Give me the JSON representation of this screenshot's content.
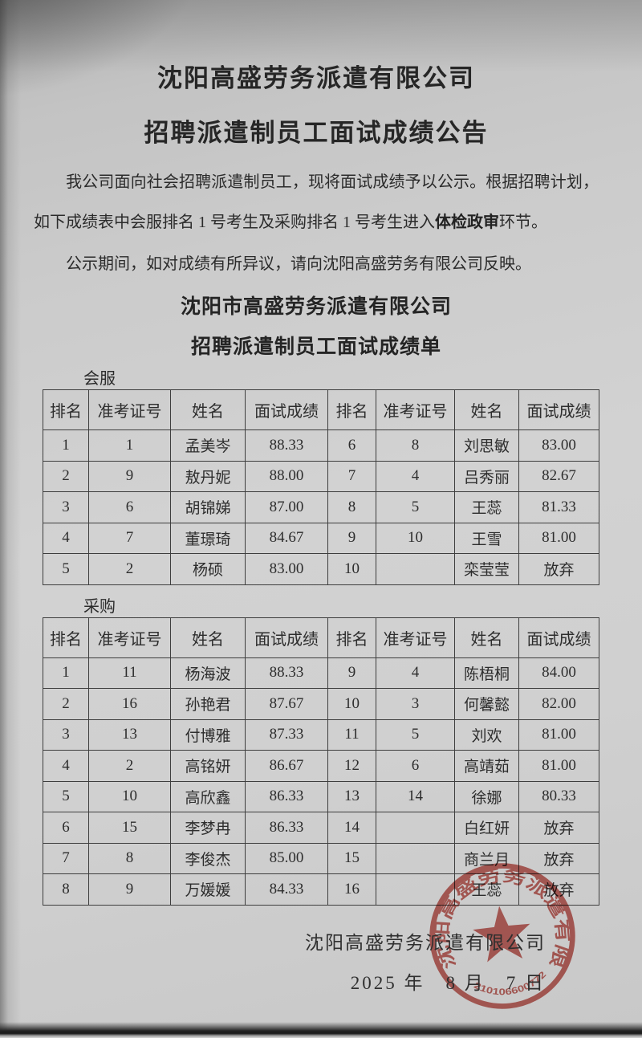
{
  "document": {
    "title_line1": "沈阳高盛劳务派遣有限公司",
    "title_line2": "招聘派遣制员工面试成绩公告",
    "paragraph1_before": "我公司面向社会招聘派遣制员工，现将面试成绩予以公示。根据招聘计划，如下成绩表中会服排名 1 号考生及采购排名 1 号考生进入",
    "paragraph1_bold": "体检政审",
    "paragraph1_after": "环节。",
    "paragraph2": "公示期间，如对成绩有所异议，请向沈阳高盛劳务有限公司反映。",
    "list_title_line1": "沈阳市高盛劳务派遣有限公司",
    "list_title_line2": "招聘派遣制员工面试成绩单"
  },
  "tables": [
    {
      "label": "会服",
      "headers": [
        "排名",
        "准考证号",
        "姓名",
        "面试成绩",
        "排名",
        "准考证号",
        "姓名",
        "面试成绩"
      ],
      "rows": [
        [
          "1",
          "1",
          "孟美岑",
          "88.33",
          "6",
          "8",
          "刘思敏",
          "83.00"
        ],
        [
          "2",
          "9",
          "敖丹妮",
          "88.00",
          "7",
          "4",
          "吕秀丽",
          "82.67"
        ],
        [
          "3",
          "6",
          "胡锦娣",
          "87.00",
          "8",
          "5",
          "王蕊",
          "81.33"
        ],
        [
          "4",
          "7",
          "董璟琦",
          "84.67",
          "9",
          "10",
          "王雪",
          "81.00"
        ],
        [
          "5",
          "2",
          "杨硕",
          "83.00",
          "10",
          "",
          "栾莹莹",
          "放弃"
        ]
      ]
    },
    {
      "label": "采购",
      "headers": [
        "排名",
        "准考证号",
        "姓名",
        "面试成绩",
        "排名",
        "准考证号",
        "姓名",
        "面试成绩"
      ],
      "rows": [
        [
          "1",
          "11",
          "杨海波",
          "88.33",
          "9",
          "4",
          "陈梧桐",
          "84.00"
        ],
        [
          "2",
          "16",
          "孙艳君",
          "87.67",
          "10",
          "3",
          "何馨懿",
          "82.00"
        ],
        [
          "3",
          "13",
          "付博雅",
          "87.33",
          "11",
          "5",
          "刘欢",
          "81.00"
        ],
        [
          "4",
          "2",
          "高铭妍",
          "86.67",
          "12",
          "6",
          "高靖茹",
          "81.00"
        ],
        [
          "5",
          "10",
          "高欣鑫",
          "86.33",
          "13",
          "14",
          "徐娜",
          "80.33"
        ],
        [
          "6",
          "15",
          "李梦冉",
          "86.33",
          "14",
          "",
          "白红妍",
          "放弃"
        ],
        [
          "7",
          "8",
          "李俊杰",
          "85.00",
          "15",
          "",
          "商兰月",
          "放弃"
        ],
        [
          "8",
          "9",
          "万媛媛",
          "84.33",
          "16",
          "",
          "王蕊",
          "放弃"
        ]
      ]
    }
  ],
  "footer": {
    "company": "沈阳高盛劳务派遣有限公司",
    "date": "2025 年　8 月　7 日"
  },
  "seal": {
    "arc_text": "沈阳高盛劳务派遣有限公司",
    "serial_number": "21010660077208",
    "color": "#bf4a43"
  }
}
